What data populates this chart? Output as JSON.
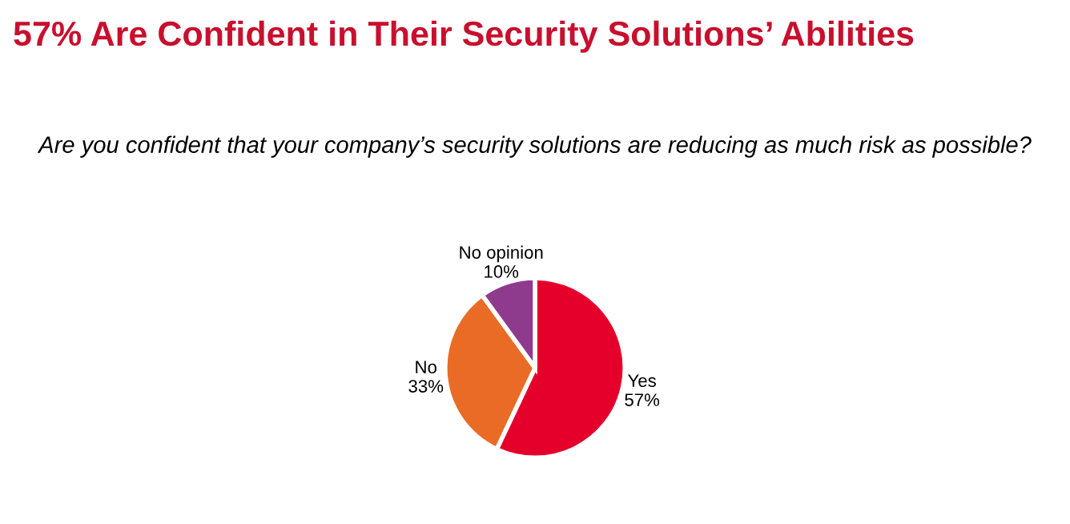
{
  "chart_data": {
    "type": "pie",
    "title": "57% Are Confident in Their Security Solutions’ Abilities",
    "subtitle": "Are you confident that your company’s security solutions are reducing as much risk as possible?",
    "categories": [
      "Yes",
      "No",
      "No opinion"
    ],
    "values": [
      57,
      33,
      10
    ],
    "value_labels": [
      "57%",
      "33%",
      "10%"
    ],
    "colors": [
      "#e4002b",
      "#e96b25",
      "#8e3b8e"
    ]
  }
}
